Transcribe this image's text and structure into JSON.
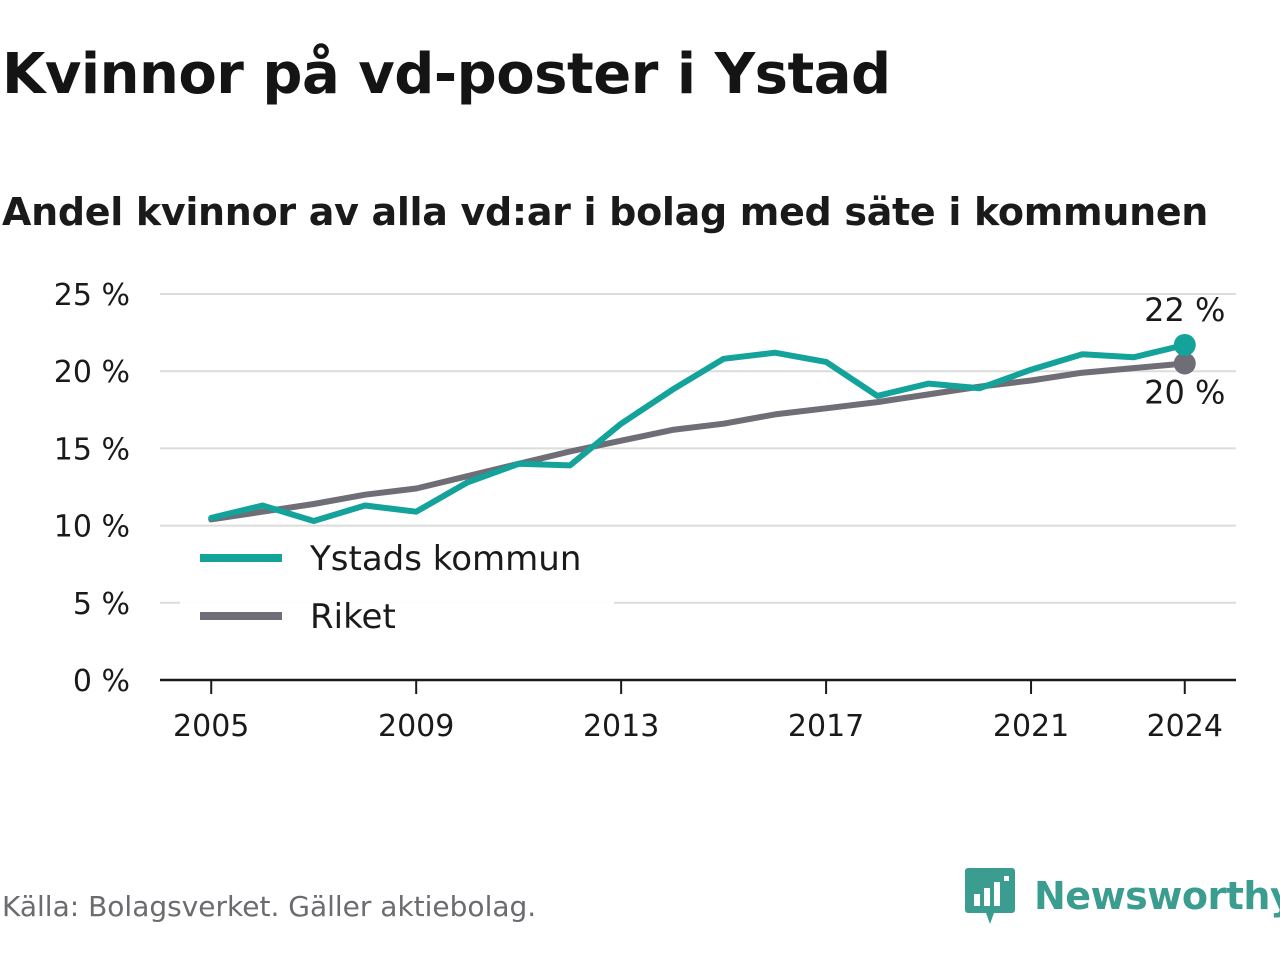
{
  "header": {
    "title": "Kvinnor på vd-poster i Ystad",
    "subtitle": "Andel kvinnor av alla vd:ar i bolag med säte i kommunen"
  },
  "footer": {
    "source": "Källa: Bolagsverket. Gäller aktiebolag.",
    "brand": "Newsworthy"
  },
  "colors": {
    "ystad": "#14a39a",
    "riket": "#6f6e76",
    "grid": "#dcdcdc",
    "axis": "#1a1a1a",
    "brand": "#3a9d8f"
  },
  "chart_data": {
    "type": "line",
    "x": [
      2005,
      2006,
      2007,
      2008,
      2009,
      2010,
      2011,
      2012,
      2013,
      2014,
      2015,
      2016,
      2017,
      2018,
      2019,
      2020,
      2021,
      2022,
      2023,
      2024
    ],
    "xticks": [
      2005,
      2009,
      2013,
      2017,
      2021,
      2024
    ],
    "xtick_labels": [
      "2005",
      "2009",
      "2013",
      "2017",
      "2021",
      "2024"
    ],
    "xlim": [
      2004,
      2025
    ],
    "ylim": [
      0,
      25
    ],
    "yticks": [
      0,
      5,
      10,
      15,
      20,
      25
    ],
    "ytick_labels": [
      "0 %",
      "5 %",
      "10 %",
      "15 %",
      "20 %",
      "25 %"
    ],
    "grid": true,
    "legend_position": "bottom-left",
    "series": [
      {
        "name": "Ystads kommun",
        "color": "#14a39a",
        "values": [
          10.5,
          11.3,
          10.3,
          11.3,
          10.9,
          12.8,
          14.0,
          13.9,
          16.6,
          18.8,
          20.8,
          21.2,
          20.6,
          18.4,
          19.2,
          18.9,
          20.1,
          21.1,
          20.9,
          21.7
        ],
        "end_label": "22 %"
      },
      {
        "name": "Riket",
        "color": "#6f6e76",
        "values": [
          10.4,
          10.9,
          11.4,
          12.0,
          12.4,
          13.2,
          14.0,
          14.8,
          15.5,
          16.2,
          16.6,
          17.2,
          17.6,
          18.0,
          18.5,
          19.0,
          19.4,
          19.9,
          20.2,
          20.5
        ],
        "end_label": "20 %"
      }
    ]
  }
}
